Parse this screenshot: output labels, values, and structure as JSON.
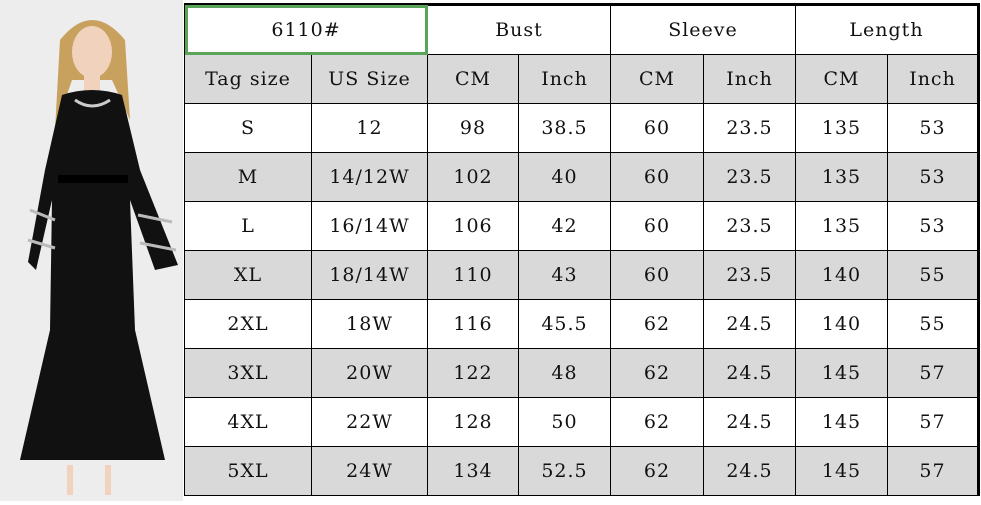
{
  "model": "6110#",
  "groups": [
    "Bust",
    "Sleeve",
    "Length"
  ],
  "columns": [
    "Tag size",
    "US Size",
    "CM",
    "Inch",
    "CM",
    "Inch",
    "CM",
    "Inch"
  ],
  "rows": [
    [
      "S",
      "12",
      "98",
      "38.5",
      "60",
      "23.5",
      "135",
      "53"
    ],
    [
      "M",
      "14/12W",
      "102",
      "40",
      "60",
      "23.5",
      "135",
      "53"
    ],
    [
      "L",
      "16/14W",
      "106",
      "42",
      "60",
      "23.5",
      "135",
      "53"
    ],
    [
      "XL",
      "18/14W",
      "110",
      "43",
      "60",
      "23.5",
      "140",
      "55"
    ],
    [
      "2XL",
      "18W",
      "116",
      "45.5",
      "62",
      "24.5",
      "140",
      "55"
    ],
    [
      "3XL",
      "20W",
      "122",
      "48",
      "62",
      "24.5",
      "145",
      "57"
    ],
    [
      "4XL",
      "22W",
      "128",
      "50",
      "62",
      "24.5",
      "145",
      "57"
    ],
    [
      "5XL",
      "24W",
      "134",
      "52.5",
      "62",
      "24.5",
      "145",
      "57"
    ]
  ],
  "colors": {
    "row_alt": "#d9d9d9",
    "selection": "#5aa45a",
    "dress": "#111111"
  }
}
